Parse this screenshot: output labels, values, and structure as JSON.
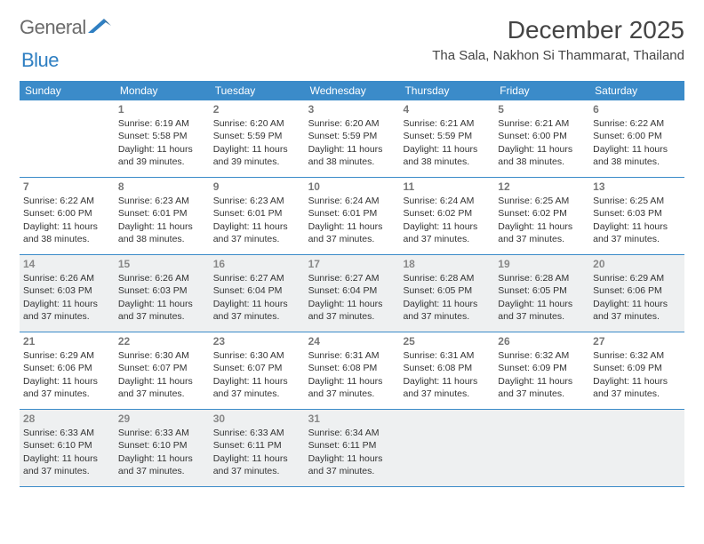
{
  "logo": {
    "text1": "General",
    "text2": "Blue"
  },
  "title": "December 2025",
  "location": "Tha Sala, Nakhon Si Thammarat, Thailand",
  "weekdays": [
    "Sunday",
    "Monday",
    "Tuesday",
    "Wednesday",
    "Thursday",
    "Friday",
    "Saturday"
  ],
  "colors": {
    "header_bg": "#3b8bc9",
    "header_text": "#ffffff",
    "shaded_bg": "#eef0f1",
    "border": "#3b8bc9",
    "text": "#333333",
    "daynum": "#777777"
  },
  "weeks": [
    [
      {
        "n": "",
        "sr": "",
        "ss": "",
        "dl": ""
      },
      {
        "n": "1",
        "sr": "Sunrise: 6:19 AM",
        "ss": "Sunset: 5:58 PM",
        "dl": "Daylight: 11 hours and 39 minutes."
      },
      {
        "n": "2",
        "sr": "Sunrise: 6:20 AM",
        "ss": "Sunset: 5:59 PM",
        "dl": "Daylight: 11 hours and 39 minutes."
      },
      {
        "n": "3",
        "sr": "Sunrise: 6:20 AM",
        "ss": "Sunset: 5:59 PM",
        "dl": "Daylight: 11 hours and 38 minutes."
      },
      {
        "n": "4",
        "sr": "Sunrise: 6:21 AM",
        "ss": "Sunset: 5:59 PM",
        "dl": "Daylight: 11 hours and 38 minutes."
      },
      {
        "n": "5",
        "sr": "Sunrise: 6:21 AM",
        "ss": "Sunset: 6:00 PM",
        "dl": "Daylight: 11 hours and 38 minutes."
      },
      {
        "n": "6",
        "sr": "Sunrise: 6:22 AM",
        "ss": "Sunset: 6:00 PM",
        "dl": "Daylight: 11 hours and 38 minutes."
      }
    ],
    [
      {
        "n": "7",
        "sr": "Sunrise: 6:22 AM",
        "ss": "Sunset: 6:00 PM",
        "dl": "Daylight: 11 hours and 38 minutes."
      },
      {
        "n": "8",
        "sr": "Sunrise: 6:23 AM",
        "ss": "Sunset: 6:01 PM",
        "dl": "Daylight: 11 hours and 38 minutes."
      },
      {
        "n": "9",
        "sr": "Sunrise: 6:23 AM",
        "ss": "Sunset: 6:01 PM",
        "dl": "Daylight: 11 hours and 37 minutes."
      },
      {
        "n": "10",
        "sr": "Sunrise: 6:24 AM",
        "ss": "Sunset: 6:01 PM",
        "dl": "Daylight: 11 hours and 37 minutes."
      },
      {
        "n": "11",
        "sr": "Sunrise: 6:24 AM",
        "ss": "Sunset: 6:02 PM",
        "dl": "Daylight: 11 hours and 37 minutes."
      },
      {
        "n": "12",
        "sr": "Sunrise: 6:25 AM",
        "ss": "Sunset: 6:02 PM",
        "dl": "Daylight: 11 hours and 37 minutes."
      },
      {
        "n": "13",
        "sr": "Sunrise: 6:25 AM",
        "ss": "Sunset: 6:03 PM",
        "dl": "Daylight: 11 hours and 37 minutes."
      }
    ],
    [
      {
        "n": "14",
        "sr": "Sunrise: 6:26 AM",
        "ss": "Sunset: 6:03 PM",
        "dl": "Daylight: 11 hours and 37 minutes."
      },
      {
        "n": "15",
        "sr": "Sunrise: 6:26 AM",
        "ss": "Sunset: 6:03 PM",
        "dl": "Daylight: 11 hours and 37 minutes."
      },
      {
        "n": "16",
        "sr": "Sunrise: 6:27 AM",
        "ss": "Sunset: 6:04 PM",
        "dl": "Daylight: 11 hours and 37 minutes."
      },
      {
        "n": "17",
        "sr": "Sunrise: 6:27 AM",
        "ss": "Sunset: 6:04 PM",
        "dl": "Daylight: 11 hours and 37 minutes."
      },
      {
        "n": "18",
        "sr": "Sunrise: 6:28 AM",
        "ss": "Sunset: 6:05 PM",
        "dl": "Daylight: 11 hours and 37 minutes."
      },
      {
        "n": "19",
        "sr": "Sunrise: 6:28 AM",
        "ss": "Sunset: 6:05 PM",
        "dl": "Daylight: 11 hours and 37 minutes."
      },
      {
        "n": "20",
        "sr": "Sunrise: 6:29 AM",
        "ss": "Sunset: 6:06 PM",
        "dl": "Daylight: 11 hours and 37 minutes."
      }
    ],
    [
      {
        "n": "21",
        "sr": "Sunrise: 6:29 AM",
        "ss": "Sunset: 6:06 PM",
        "dl": "Daylight: 11 hours and 37 minutes."
      },
      {
        "n": "22",
        "sr": "Sunrise: 6:30 AM",
        "ss": "Sunset: 6:07 PM",
        "dl": "Daylight: 11 hours and 37 minutes."
      },
      {
        "n": "23",
        "sr": "Sunrise: 6:30 AM",
        "ss": "Sunset: 6:07 PM",
        "dl": "Daylight: 11 hours and 37 minutes."
      },
      {
        "n": "24",
        "sr": "Sunrise: 6:31 AM",
        "ss": "Sunset: 6:08 PM",
        "dl": "Daylight: 11 hours and 37 minutes."
      },
      {
        "n": "25",
        "sr": "Sunrise: 6:31 AM",
        "ss": "Sunset: 6:08 PM",
        "dl": "Daylight: 11 hours and 37 minutes."
      },
      {
        "n": "26",
        "sr": "Sunrise: 6:32 AM",
        "ss": "Sunset: 6:09 PM",
        "dl": "Daylight: 11 hours and 37 minutes."
      },
      {
        "n": "27",
        "sr": "Sunrise: 6:32 AM",
        "ss": "Sunset: 6:09 PM",
        "dl": "Daylight: 11 hours and 37 minutes."
      }
    ],
    [
      {
        "n": "28",
        "sr": "Sunrise: 6:33 AM",
        "ss": "Sunset: 6:10 PM",
        "dl": "Daylight: 11 hours and 37 minutes."
      },
      {
        "n": "29",
        "sr": "Sunrise: 6:33 AM",
        "ss": "Sunset: 6:10 PM",
        "dl": "Daylight: 11 hours and 37 minutes."
      },
      {
        "n": "30",
        "sr": "Sunrise: 6:33 AM",
        "ss": "Sunset: 6:11 PM",
        "dl": "Daylight: 11 hours and 37 minutes."
      },
      {
        "n": "31",
        "sr": "Sunrise: 6:34 AM",
        "ss": "Sunset: 6:11 PM",
        "dl": "Daylight: 11 hours and 37 minutes."
      },
      {
        "n": "",
        "sr": "",
        "ss": "",
        "dl": ""
      },
      {
        "n": "",
        "sr": "",
        "ss": "",
        "dl": ""
      },
      {
        "n": "",
        "sr": "",
        "ss": "",
        "dl": ""
      }
    ]
  ],
  "shaded_weeks": [
    2,
    4
  ]
}
